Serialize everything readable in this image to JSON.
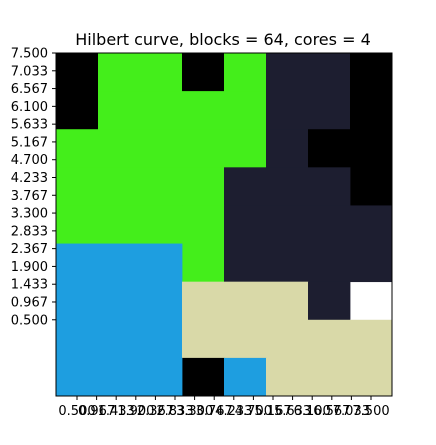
{
  "chart_data": {
    "type": "heatmap",
    "title": "Hilbert curve, blocks = 64, cores = 4",
    "xlabel": "",
    "ylabel": "",
    "grid": false,
    "xlim": [
      0,
      8
    ],
    "ylim": [
      -0.5,
      7.5
    ],
    "x_tick_values": [
      0.5,
      0.967,
      1.433,
      1.9,
      2.367,
      2.833,
      3.3,
      3.767,
      4.233,
      4.7,
      5.167,
      5.633,
      6.1,
      6.567,
      7.033,
      7.5
    ],
    "x_tick_labels": [
      "0.500",
      "0.967",
      "1.433",
      "1.900",
      "2.367",
      "2.833",
      "3.300",
      "3.767",
      "4.233",
      "4.700",
      "5.167",
      "5.633",
      "6.100",
      "6.567",
      "7.033",
      "7.500"
    ],
    "y_tick_values": [
      0.5,
      0.967,
      1.433,
      1.9,
      2.367,
      2.833,
      3.3,
      3.767,
      4.233,
      4.7,
      5.167,
      5.633,
      6.1,
      6.567,
      7.033,
      7.5
    ],
    "y_tick_labels": [
      "0.500",
      "0.967",
      "1.433",
      "1.900",
      "2.367",
      "2.833",
      "3.300",
      "3.767",
      "4.233",
      "4.700",
      "5.167",
      "5.633",
      "6.100",
      "6.567",
      "7.033",
      "7.500"
    ],
    "colors": {
      "green": "#44ee1b",
      "navy": "#1d1e30",
      "black": "#000000",
      "blue": "#1e9ee0",
      "beige": "#d9d9a8"
    },
    "cells": [
      {
        "x0": 0,
        "x1": 1,
        "y0": 5.5,
        "y1": 7.5,
        "color": "black"
      },
      {
        "x0": 1,
        "x1": 3,
        "y0": 6.5,
        "y1": 7.5,
        "color": "green"
      },
      {
        "x0": 3,
        "x1": 4,
        "y0": 6.5,
        "y1": 7.5,
        "color": "black"
      },
      {
        "x0": 4,
        "x1": 5,
        "y0": 6.5,
        "y1": 7.5,
        "color": "green"
      },
      {
        "x0": 1,
        "x1": 5,
        "y0": 5.5,
        "y1": 6.5,
        "color": "green"
      },
      {
        "x0": 0,
        "x1": 5,
        "y0": 4.5,
        "y1": 5.5,
        "color": "green"
      },
      {
        "x0": 5,
        "x1": 7,
        "y0": 5.5,
        "y1": 7.5,
        "color": "navy"
      },
      {
        "x0": 7,
        "x1": 8,
        "y0": 3.5,
        "y1": 7.5,
        "color": "black"
      },
      {
        "x0": 5,
        "x1": 6,
        "y0": 4.5,
        "y1": 5.5,
        "color": "navy"
      },
      {
        "x0": 6,
        "x1": 7,
        "y0": 4.5,
        "y1": 5.5,
        "color": "black"
      },
      {
        "x0": 0,
        "x1": 4,
        "y0": 3.5,
        "y1": 4.5,
        "color": "green"
      },
      {
        "x0": 4,
        "x1": 7,
        "y0": 3.5,
        "y1": 4.5,
        "color": "navy"
      },
      {
        "x0": 0,
        "x1": 3,
        "y0": 2.5,
        "y1": 3.5,
        "color": "green"
      },
      {
        "x0": 3,
        "x1": 4,
        "y0": 1.5,
        "y1": 3.5,
        "color": "green"
      },
      {
        "x0": 4,
        "x1": 8,
        "y0": 1.5,
        "y1": 3.5,
        "color": "navy"
      },
      {
        "x0": 0,
        "x1": 3,
        "y0": -0.5,
        "y1": 2.5,
        "color": "blue"
      },
      {
        "x0": 3,
        "x1": 6,
        "y0": 0.5,
        "y1": 1.5,
        "color": "beige"
      },
      {
        "x0": 6,
        "x1": 7,
        "y0": 0.5,
        "y1": 1.5,
        "color": "navy"
      },
      {
        "x0": 3,
        "x1": 7,
        "y0": -0.5,
        "y1": 0.5,
        "color": "beige"
      },
      {
        "x0": 7,
        "x1": 8,
        "y0": -0.5,
        "y1": 0.5,
        "color": "beige"
      },
      {
        "x0": 3,
        "x1": 4,
        "y0": -1.5,
        "y1": -0.5,
        "color": "black"
      },
      {
        "x0": 4,
        "x1": 5,
        "y0": -1.5,
        "y1": -0.5,
        "color": "blue"
      },
      {
        "x0": 5,
        "x1": 8,
        "y0": -1.5,
        "y1": -0.5,
        "color": "beige"
      },
      {
        "x0": 0,
        "x1": 3,
        "y0": -1.5,
        "y1": -0.5,
        "color": "blue"
      }
    ]
  }
}
